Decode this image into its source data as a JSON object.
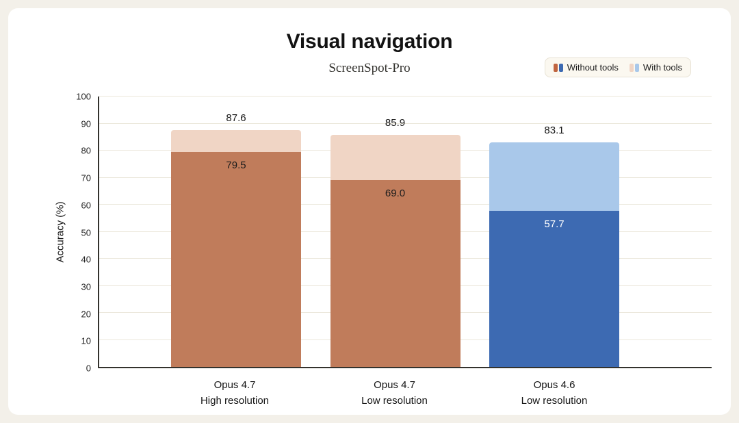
{
  "page": {
    "background_color": "#f3f0e9",
    "card_color": "#ffffff"
  },
  "header": {
    "title": "Visual navigation",
    "subtitle": "ScreenSpot-Pro"
  },
  "legend": {
    "items": [
      {
        "label": "Without tools",
        "swatches": [
          "#c0643f",
          "#3d6ab2"
        ]
      },
      {
        "label": "With tools",
        "swatches": [
          "#f0d5c5",
          "#a9c8ea"
        ]
      }
    ]
  },
  "chart_data": {
    "type": "bar",
    "title": "Visual navigation",
    "subtitle": "ScreenSpot-Pro",
    "xlabel": "",
    "ylabel": "Accuracy (%)",
    "ylim": [
      0,
      100
    ],
    "yticks": [
      0,
      10,
      20,
      30,
      40,
      50,
      60,
      70,
      80,
      90,
      100
    ],
    "grid": true,
    "legend_position": "top-right",
    "categories": [
      "Opus 4.7 High resolution",
      "Opus 4.7 Low resolution",
      "Opus 4.6 Low resolution"
    ],
    "series": [
      {
        "name": "Without tools",
        "values": [
          79.5,
          69.0,
          57.7
        ]
      },
      {
        "name": "With tools",
        "values": [
          87.6,
          85.9,
          83.1
        ]
      }
    ],
    "bars": [
      {
        "label_line1": "Opus 4.7",
        "label_line2": "High resolution",
        "without_tools": 79.5,
        "with_tools": 87.6,
        "top_label": "87.6",
        "inner_label": "79.5",
        "dark_color": "#c07c5b",
        "light_color": "#f0d5c5",
        "inner_label_color": "#1c1c1c"
      },
      {
        "label_line1": "Opus 4.7",
        "label_line2": "Low resolution",
        "without_tools": 69.0,
        "with_tools": 85.9,
        "top_label": "85.9",
        "inner_label": "69.0",
        "dark_color": "#c07c5b",
        "light_color": "#f0d5c5",
        "inner_label_color": "#1c1c1c"
      },
      {
        "label_line1": "Opus 4.6",
        "label_line2": "Low resolution",
        "without_tools": 57.7,
        "with_tools": 83.1,
        "top_label": "83.1",
        "inner_label": "57.7",
        "dark_color": "#3d6ab2",
        "light_color": "#a9c8ea",
        "inner_label_color": "#ffffff"
      }
    ]
  }
}
